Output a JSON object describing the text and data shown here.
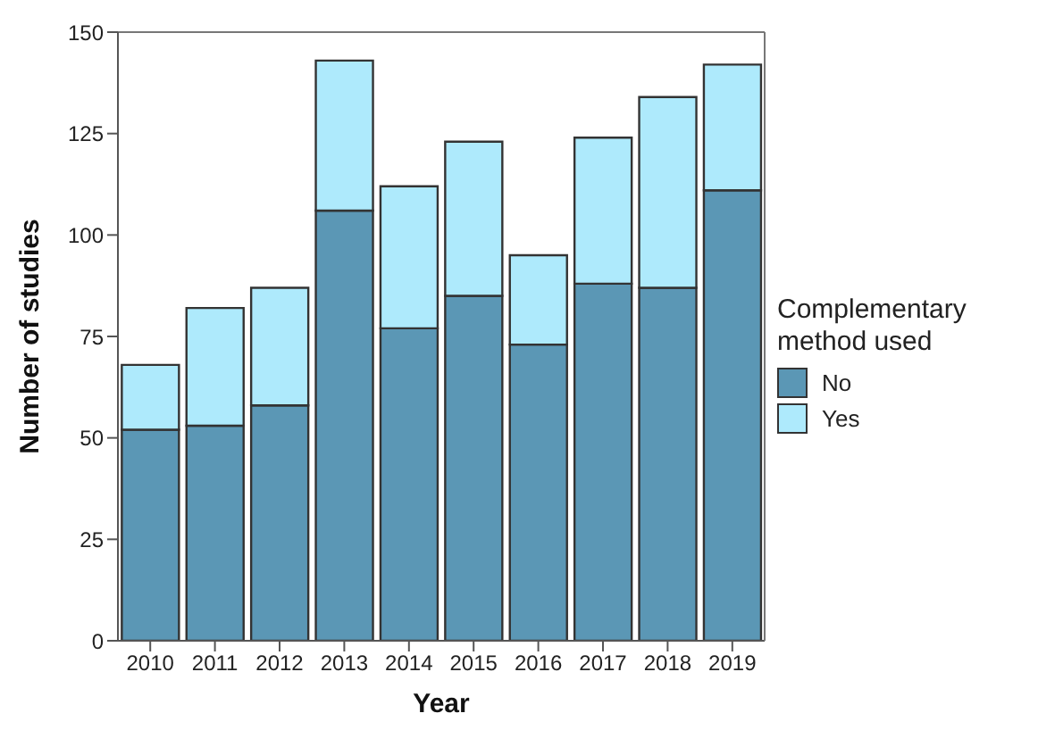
{
  "chart_data": {
    "type": "bar",
    "xlabel": "Year",
    "ylabel": "Number of studies",
    "legend_title": "Complementary method used",
    "categories": [
      "2010",
      "2011",
      "2012",
      "2013",
      "2014",
      "2015",
      "2016",
      "2017",
      "2018",
      "2019"
    ],
    "series": [
      {
        "name": "No",
        "color": "#5b97b5",
        "values": [
          52,
          53,
          58,
          106,
          77,
          85,
          73,
          88,
          87,
          111
        ]
      },
      {
        "name": "Yes",
        "color": "#aeeafc",
        "values": [
          16,
          29,
          29,
          37,
          35,
          38,
          22,
          36,
          47,
          31
        ]
      }
    ],
    "stacked": true,
    "ylim": [
      0,
      150
    ],
    "yticks": [
      0,
      25,
      50,
      75,
      100,
      125,
      150
    ],
    "grid": false,
    "legend": "right"
  }
}
